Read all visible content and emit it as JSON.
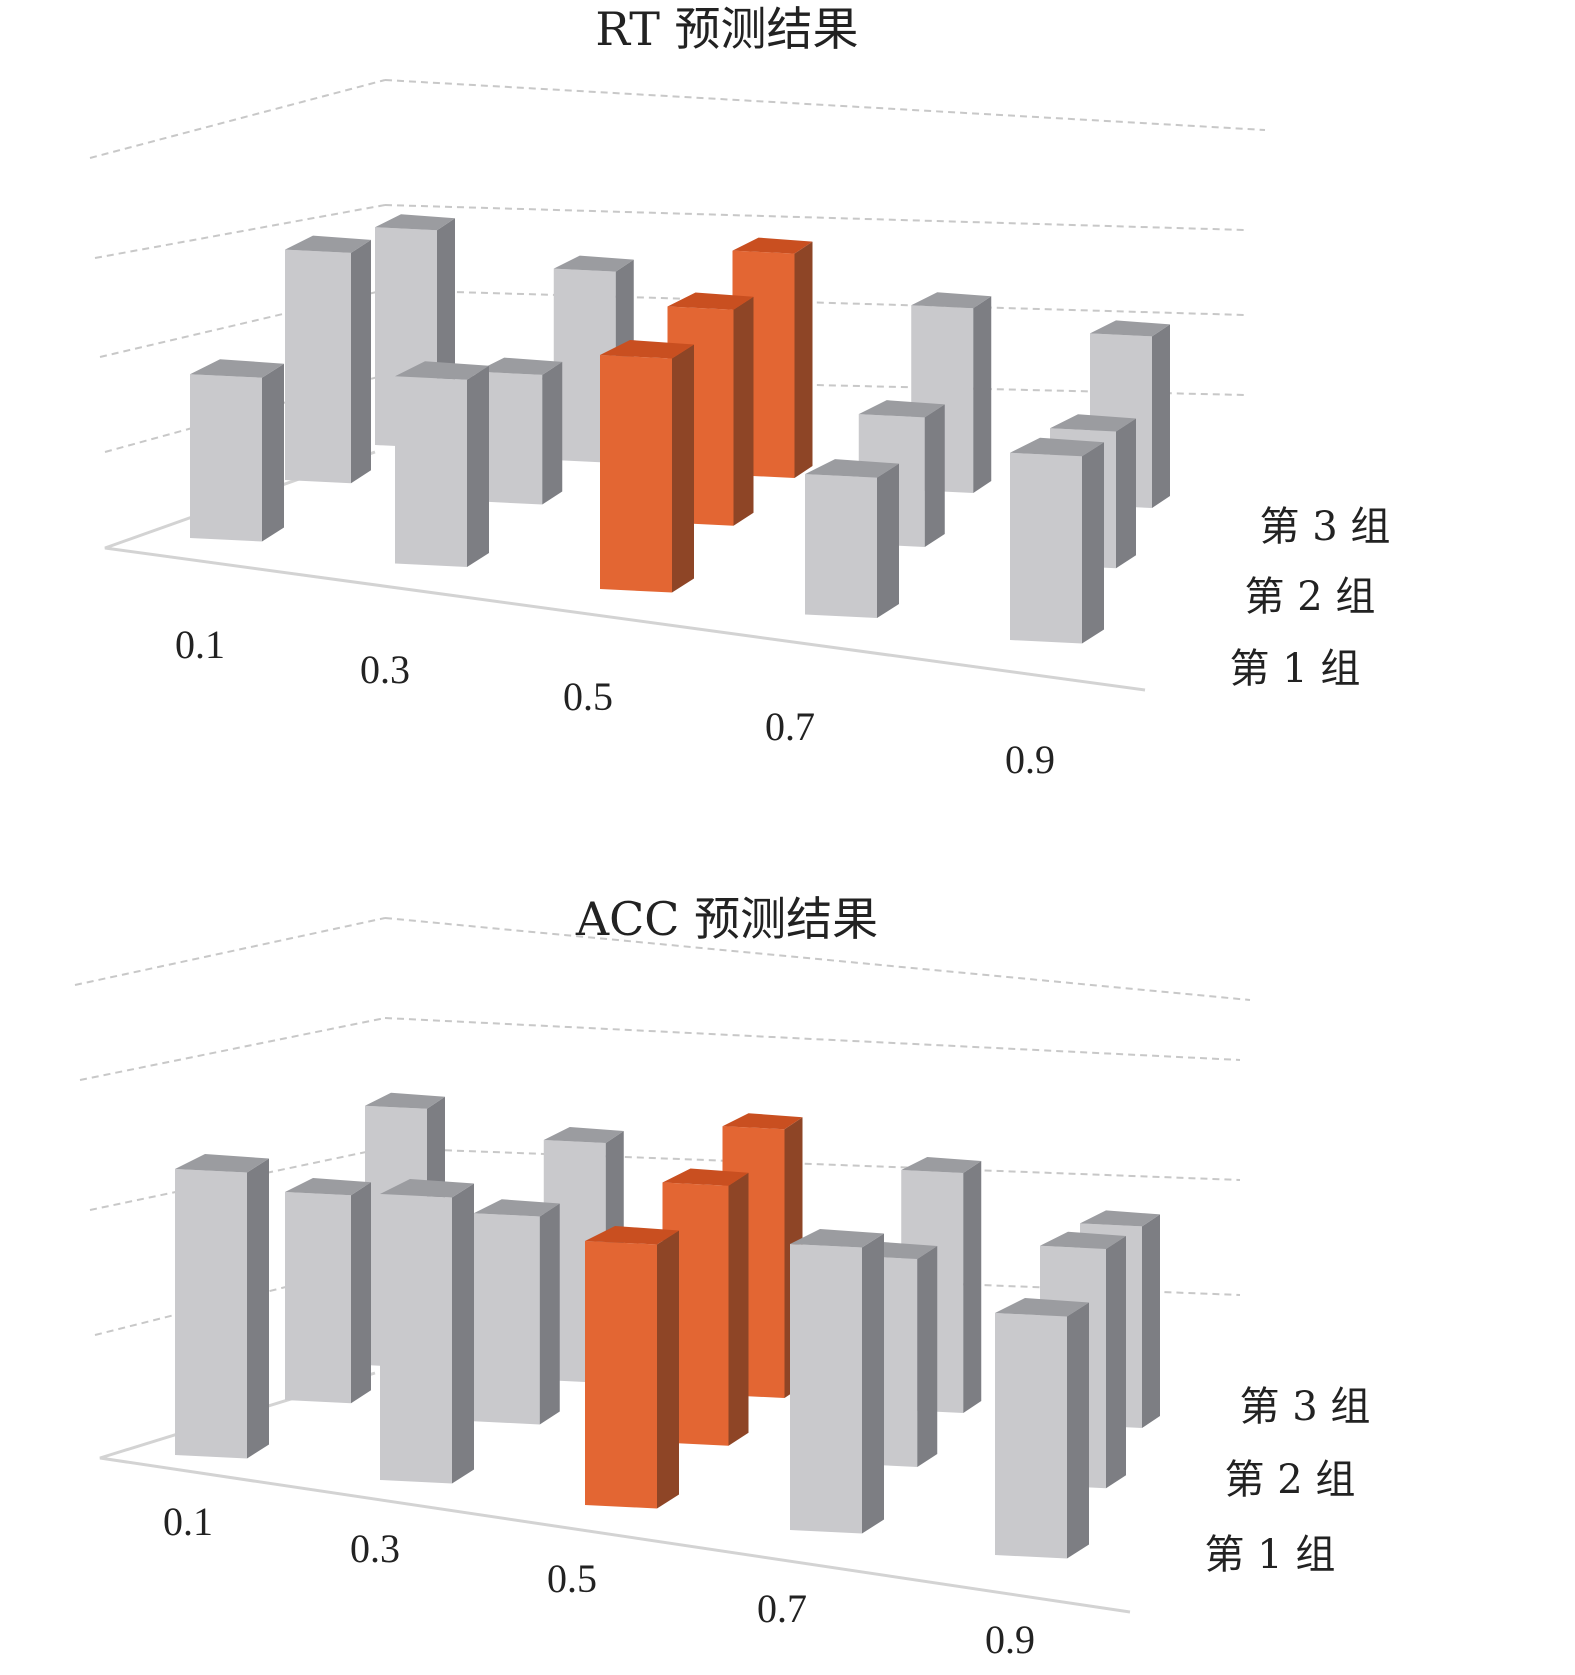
{
  "chart_data": [
    {
      "type": "bar",
      "title": "RT 预测结果",
      "categories": [
        "0.1",
        "0.3",
        "0.5",
        "0.7",
        "0.9"
      ],
      "series": [
        {
          "name": "第 1 组",
          "values": [
            2.1,
            2.4,
            3.0,
            1.8,
            2.4
          ]
        },
        {
          "name": "第 2 组",
          "values": [
            3.2,
            1.8,
            3.0,
            1.8,
            1.9
          ]
        },
        {
          "name": "第 3 组",
          "values": [
            3.3,
            2.9,
            3.4,
            2.8,
            2.6
          ]
        }
      ],
      "highlight_category": "0.5",
      "ylim": [
        0,
        4
      ],
      "grid": true,
      "legend_position": "right"
    },
    {
      "type": "bar",
      "title": "ACC 预测结果",
      "categories": [
        "0.1",
        "0.3",
        "0.5",
        "0.7",
        "0.9"
      ],
      "series": [
        {
          "name": "第 1 组",
          "values": [
            2.6,
            2.6,
            2.4,
            2.6,
            2.2
          ]
        },
        {
          "name": "第 2 组",
          "values": [
            2.0,
            2.0,
            2.5,
            2.0,
            2.3
          ]
        },
        {
          "name": "第 3 组",
          "values": [
            2.7,
            2.5,
            2.8,
            2.5,
            2.1
          ]
        }
      ],
      "highlight_category": "0.5",
      "ylim": [
        0,
        3
      ],
      "grid": true,
      "legend_position": "right"
    }
  ],
  "colors": {
    "default_front": "#c9c9cc",
    "default_top": "#9b9ca0",
    "default_side": "#7d7e83",
    "highlight_front": "#e36633",
    "highlight_top": "#c94f20",
    "highlight_side": "#8e4526",
    "gridline": "#c8c8c8",
    "floor": "#d3d3d3"
  }
}
